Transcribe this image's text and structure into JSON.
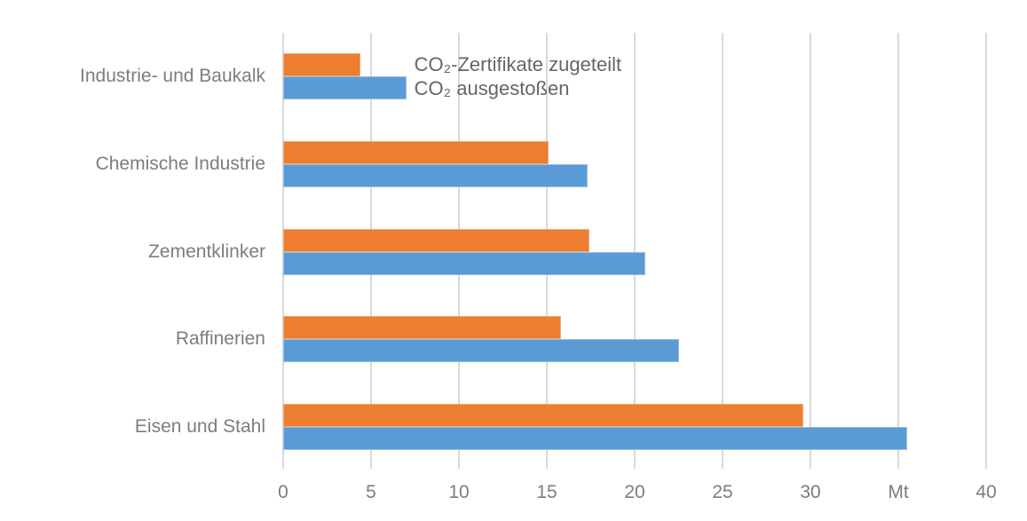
{
  "chart_data": {
    "type": "bar",
    "orientation": "horizontal",
    "title": "",
    "xlabel": "",
    "ylabel": "",
    "unit_label": "Mt",
    "categories": [
      "Industrie- und Baukalk",
      "Chemische Industrie",
      "Zementklinker",
      "Raffinerien",
      "Eisen und Stahl"
    ],
    "series": [
      {
        "name": "CO₂-Zertifikate zugeteilt",
        "color": "#ED7D31",
        "values": [
          4.4,
          15.1,
          17.4,
          15.8,
          29.6
        ]
      },
      {
        "name": "CO₂ ausgestoßen",
        "color": "#5B9BD5",
        "values": [
          7.0,
          17.3,
          20.6,
          22.5,
          35.5
        ]
      }
    ],
    "xlim": [
      0,
      40
    ],
    "x_ticks": [
      0,
      5,
      10,
      15,
      20,
      25,
      30,
      35,
      40
    ],
    "x_tick_labels": [
      "0",
      "5",
      "10",
      "15",
      "20",
      "25",
      "30",
      "Mt",
      "40"
    ],
    "grid": "vertical-only",
    "legend_position": "inside-plot-next-to-first-group",
    "colors": {
      "background": "#FFFFFF",
      "gridline": "#D9D9D9",
      "axis_text": "#7D7D7D",
      "legend_text": "#666666",
      "series_allocated": "#ED7D31",
      "series_emitted": "#5B9BD5"
    }
  }
}
